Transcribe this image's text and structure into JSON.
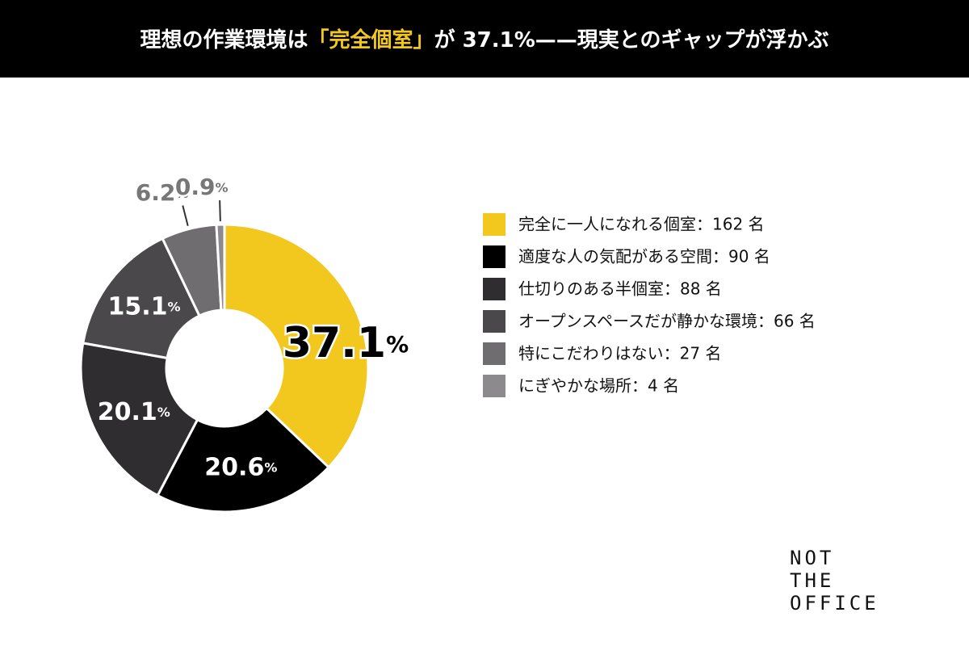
{
  "chart_data": {
    "type": "pie",
    "title": [
      "理想の作業環境は",
      "「完全個室」",
      "が 37.1%——現実とのギャップが浮かぶ"
    ],
    "categories": [
      "完全に一人になれる個室：162 名",
      "適度な人の気配がある空間：90 名",
      "仕切りのある半個室：88 名",
      "オープンスペースだが静かな環境：66 名",
      "特にこだわりはない：27 名",
      "にぎやかな場所：4 名"
    ],
    "values": [
      37.1,
      20.6,
      20.1,
      15.1,
      6.2,
      0.9
    ],
    "value_labels": [
      "37.1%",
      "20.6%",
      "20.1%",
      "15.1%",
      "6.2%",
      "0.9%"
    ],
    "colors": [
      "#f2c81e",
      "#000000",
      "#2f2d2f",
      "#4a484a",
      "#6f6d6f",
      "#8c8a8c"
    ],
    "donut": true,
    "legend": "right"
  },
  "logo": [
    "NOT",
    "THE",
    "OFFICE"
  ]
}
